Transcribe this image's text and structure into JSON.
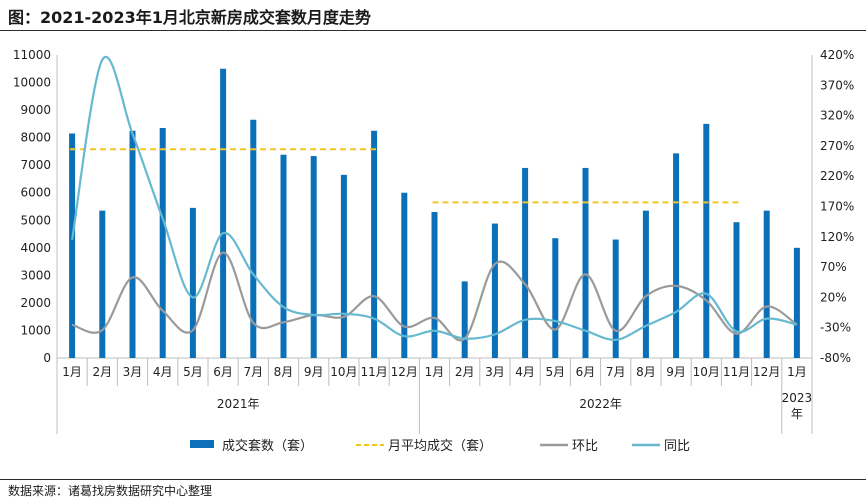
{
  "title": "图：2021-2023年1月北京新房成交套数月度走势",
  "source": "数据来源：诸葛找房数据研究中心整理",
  "colors": {
    "bar": "#0b70b8",
    "avg": "#f3c623",
    "mom": "#9a9a9a",
    "yoy": "#66b9cf"
  },
  "chart_data": {
    "type": "bar",
    "categories": [
      "1月",
      "2月",
      "3月",
      "4月",
      "5月",
      "6月",
      "7月",
      "8月",
      "9月",
      "10月",
      "11月",
      "12月",
      "1月",
      "2月",
      "3月",
      "4月",
      "5月",
      "6月",
      "7月",
      "8月",
      "9月",
      "10月",
      "11月",
      "12月",
      "1月"
    ],
    "groups": [
      {
        "label": "2021年",
        "start": 0,
        "end": 11
      },
      {
        "label": "2022年",
        "start": 12,
        "end": 23
      },
      {
        "label": "2023年",
        "start": 24,
        "end": 24
      }
    ],
    "ylim": [
      0,
      11000
    ],
    "yticks": [
      0,
      1000,
      2000,
      3000,
      4000,
      5000,
      6000,
      7000,
      8000,
      9000,
      10000,
      11000
    ],
    "y2lim": [
      -80,
      420
    ],
    "y2ticks": [
      "-80%",
      "-30%",
      "20%",
      "70%",
      "120%",
      "170%",
      "220%",
      "270%",
      "320%",
      "370%",
      "420%"
    ],
    "series": [
      {
        "name": "成交套数（套）",
        "kind": "bar",
        "axis": "left",
        "values": [
          8150,
          5350,
          8250,
          8350,
          5450,
          10500,
          8650,
          7380,
          7330,
          6650,
          8250,
          6000,
          5300,
          2780,
          4880,
          6900,
          4350,
          6900,
          4300,
          5350,
          7430,
          8500,
          4930,
          5350,
          4000
        ]
      },
      {
        "name": "月平均成交（套）",
        "kind": "avg",
        "axis": "left",
        "segments": [
          {
            "start": 0,
            "end": 10,
            "value": 7580
          },
          {
            "start": 12,
            "end": 22,
            "value": 5650
          }
        ]
      },
      {
        "name": "环比",
        "kind": "line",
        "axis": "right",
        "values": [
          -25,
          -34,
          53,
          -2,
          -34,
          94,
          -22,
          -21,
          -9,
          -12,
          22,
          -28,
          -14,
          -48,
          75,
          42,
          -33,
          58,
          -35,
          22,
          39,
          15,
          -40,
          5,
          -25
        ]
      },
      {
        "name": "同比",
        "kind": "line",
        "axis": "right",
        "values": [
          115,
          412,
          290,
          150,
          20,
          126,
          58,
          4,
          -9,
          -7,
          -15,
          -44,
          -35,
          -48,
          -41,
          -17,
          -19,
          -35,
          -50,
          -27,
          -4,
          26,
          -36,
          -15,
          -25
        ]
      }
    ]
  }
}
